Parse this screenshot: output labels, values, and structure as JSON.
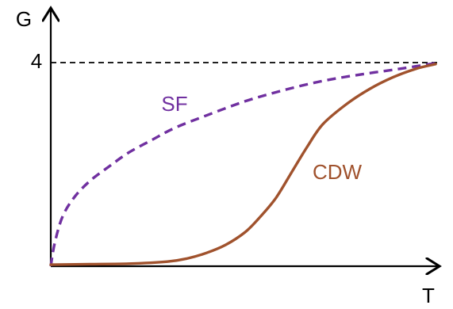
{
  "chart_data": {
    "type": "line",
    "xlabel": "T",
    "ylabel": "G",
    "xlim": [
      0,
      10
    ],
    "ylim": [
      0,
      5
    ],
    "y_ticks": [
      4
    ],
    "y_tick_labels": [
      "4"
    ],
    "grid": false,
    "reference_lines": [
      {
        "y": 4,
        "style": "dashed",
        "color": "#000000"
      }
    ],
    "series": [
      {
        "name": "SF",
        "color": "#7030A0",
        "style": "dashed",
        "x": [
          0,
          0.1,
          0.3,
          0.6,
          1.0,
          1.5,
          2.0,
          2.6,
          3.2,
          4.0,
          5.0,
          6.0,
          7.0,
          8.0,
          9.0,
          10.0
        ],
        "y": [
          0,
          0.45,
          0.97,
          1.35,
          1.67,
          1.96,
          2.23,
          2.48,
          2.72,
          2.96,
          3.24,
          3.46,
          3.64,
          3.77,
          3.88,
          4.0
        ]
      },
      {
        "name": "CDW",
        "color": "#A0522D",
        "style": "solid",
        "x": [
          0,
          1.0,
          2.0,
          3.0,
          3.5,
          4.0,
          4.5,
          5.0,
          5.4,
          5.8,
          6.2,
          6.6,
          7.0,
          7.6,
          8.2,
          8.8,
          9.4,
          9.9
        ],
        "y": [
          0.03,
          0.04,
          0.05,
          0.09,
          0.15,
          0.26,
          0.42,
          0.67,
          0.98,
          1.35,
          1.85,
          2.35,
          2.79,
          3.18,
          3.48,
          3.71,
          3.88,
          3.97
        ]
      }
    ]
  }
}
